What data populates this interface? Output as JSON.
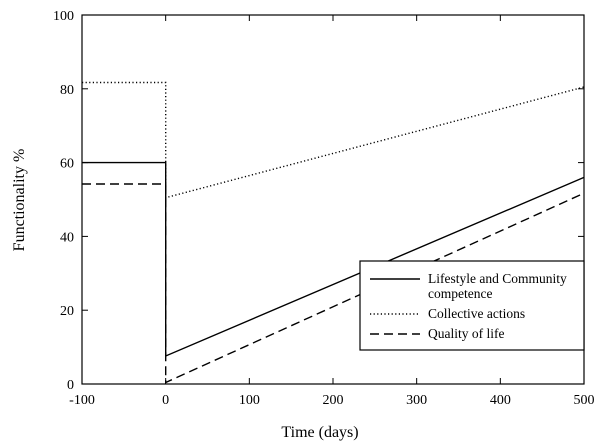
{
  "chart_data": {
    "type": "line",
    "title": "",
    "xlabel": "Time (days)",
    "ylabel": "Functionality %",
    "xlim": [
      -100,
      500
    ],
    "ylim": [
      0,
      100
    ],
    "xticks": [
      -100,
      0,
      100,
      200,
      300,
      400,
      500
    ],
    "yticks": [
      0,
      20,
      40,
      60,
      80,
      100
    ],
    "grid": false,
    "legend_position": "lower-right",
    "series": [
      {
        "name": "Lifestyle and Community competence",
        "legend_lines": [
          "Lifestyle and Community",
          "competence"
        ],
        "style": "solid",
        "x": [
          -100,
          0,
          0,
          500
        ],
        "y": [
          60,
          60,
          7.6,
          56
        ]
      },
      {
        "name": "Collective actions",
        "legend_lines": [
          "Collective actions"
        ],
        "style": "dotted",
        "x": [
          -100,
          0,
          0,
          500
        ],
        "y": [
          81.7,
          81.7,
          50.5,
          80.5
        ]
      },
      {
        "name": "Quality of life",
        "legend_lines": [
          "Quality of life"
        ],
        "style": "dashed",
        "x": [
          -100,
          0,
          0,
          500
        ],
        "y": [
          54.2,
          54.2,
          0.4,
          51.7
        ]
      }
    ]
  }
}
